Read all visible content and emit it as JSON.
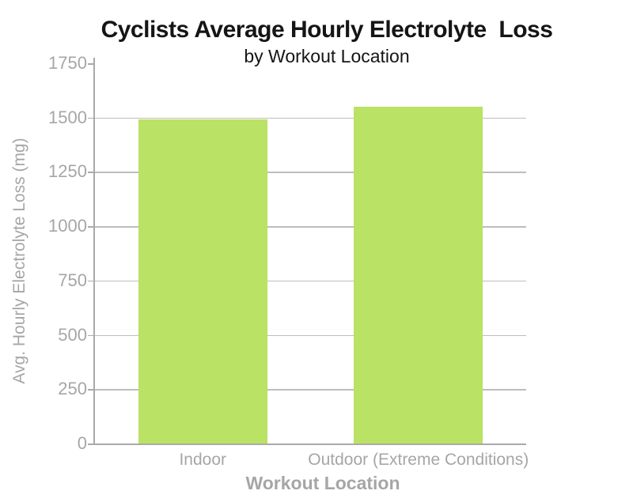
{
  "chart_data": {
    "type": "bar",
    "title": "Cyclists Average Hourly Electrolyte  Loss",
    "subtitle": "by Workout Location",
    "xlabel": "Workout Location",
    "ylabel": "Avg. Hourly Electrolyte Loss (mg)",
    "categories": [
      "Indoor",
      "Outdoor (Extreme Conditions)"
    ],
    "values": [
      1490,
      1550
    ],
    "ylim": [
      0,
      1750
    ],
    "yticks": [
      0,
      250,
      500,
      750,
      1000,
      1250,
      1500,
      1750
    ],
    "grid": true,
    "legend": "none",
    "colors": {
      "bar": "#bae264",
      "axis": "#aaaaaa",
      "gridline": "#bdbdbd",
      "tick_text": "#a6a6a6",
      "title_text": "#151515"
    }
  }
}
